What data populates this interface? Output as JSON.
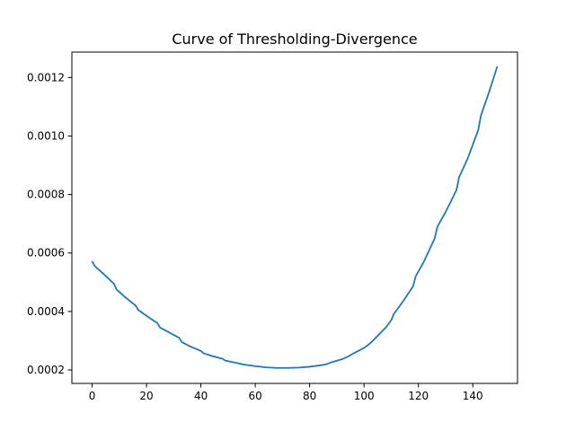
{
  "chart_data": {
    "type": "line",
    "title": "Curve of Thresholding-Divergence",
    "xlabel": "",
    "ylabel": "",
    "xlim": [
      -7.45,
      156.45
    ],
    "ylim": [
      0.000154,
      0.001287
    ],
    "xticks": [
      0,
      20,
      40,
      60,
      80,
      100,
      120,
      140
    ],
    "xtick_labels": [
      "0",
      "20",
      "40",
      "60",
      "80",
      "100",
      "120",
      "140"
    ],
    "yticks": [
      0.0002,
      0.0004,
      0.0006,
      0.0008,
      0.001,
      0.0012
    ],
    "ytick_labels": [
      "0.0002",
      "0.0004",
      "0.0006",
      "0.0008",
      "0.0010",
      "0.0012"
    ],
    "grid": false,
    "series": [
      {
        "color": "#1f77b4",
        "x": [
          0,
          1,
          4,
          8,
          9,
          12,
          16,
          17,
          20,
          24,
          25,
          28,
          32,
          33,
          36,
          40,
          41,
          44,
          48,
          49,
          52,
          56,
          60,
          64,
          68,
          72,
          76,
          80,
          84,
          86,
          88,
          92,
          94,
          96,
          100,
          102,
          104,
          108,
          110,
          111,
          114,
          118,
          119,
          122,
          126,
          127,
          130,
          134,
          135,
          138,
          142,
          143,
          146,
          149
        ],
        "y": [
          0.000572,
          0.000555,
          0.00053,
          0.000495,
          0.000475,
          0.00045,
          0.00042,
          0.000405,
          0.000385,
          0.00036,
          0.000345,
          0.00033,
          0.00031,
          0.000295,
          0.000281,
          0.000265,
          0.000257,
          0.000248,
          0.000238,
          0.000232,
          0.000226,
          0.000218,
          0.000213,
          0.000209,
          0.000207,
          0.000207,
          0.000208,
          0.000211,
          0.000216,
          0.000219,
          0.000226,
          0.000237,
          0.000245,
          0.000256,
          0.000275,
          0.000289,
          0.000307,
          0.000345,
          0.00037,
          0.000392,
          0.00043,
          0.000485,
          0.00052,
          0.00057,
          0.00065,
          0.00069,
          0.00074,
          0.000815,
          0.00086,
          0.00092,
          0.00102,
          0.00107,
          0.00115,
          0.001238
        ]
      }
    ]
  }
}
